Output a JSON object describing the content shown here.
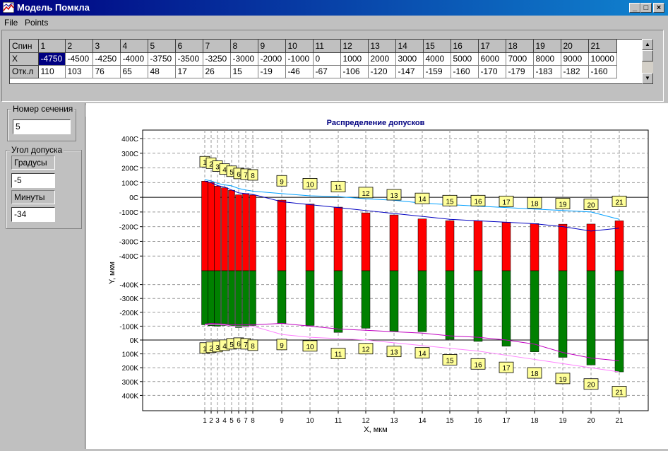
{
  "window": {
    "title": "Модель Помкла"
  },
  "menu": [
    "File",
    "Points"
  ],
  "grid": {
    "rows": [
      {
        "label": "Спин",
        "cells": [
          "1",
          "2",
          "3",
          "4",
          "5",
          "6",
          "7",
          "8",
          "9",
          "10",
          "11",
          "12",
          "13",
          "14",
          "15",
          "16",
          "17",
          "18",
          "19",
          "20",
          "21"
        ]
      },
      {
        "label": "X",
        "cells": [
          "-4750",
          "-4500",
          "-4250",
          "-4000",
          "-3750",
          "-3500",
          "-3250",
          "-3000",
          "-2000",
          "-1000",
          "0",
          "1000",
          "2000",
          "3000",
          "4000",
          "5000",
          "6000",
          "7000",
          "8000",
          "9000",
          "10000"
        ]
      },
      {
        "label": "Отк.л",
        "cells": [
          "110",
          "103",
          "76",
          "65",
          "48",
          "17",
          "26",
          "15",
          "-19",
          "-46",
          "-67",
          "-106",
          "-120",
          "-147",
          "-159",
          "-160",
          "-170",
          "-179",
          "-183",
          "-182",
          "-160"
        ]
      }
    ]
  },
  "section": {
    "label": "Номер сечения",
    "value": "5"
  },
  "angle": {
    "label": "Угол допуска",
    "degrees_label": "Градусы",
    "degrees_value": "-5",
    "minutes_label": "Минуты",
    "minutes_value": "-34"
  },
  "chart_data": {
    "type": "bar",
    "title": "Распределение допусков",
    "xlabel": "X, мкм",
    "ylabel": "Y, мкм",
    "x_ticks": [
      "1",
      "2",
      "3",
      "4",
      "5",
      "6",
      "7",
      "8",
      "9",
      "10",
      "11",
      "12",
      "13",
      "14",
      "15",
      "16",
      "17",
      "18",
      "19",
      "20",
      "21"
    ],
    "upper_ticks": [
      "400C",
      "300C",
      "200C",
      "100C",
      "0C",
      "-100C",
      "-200C",
      "-300C",
      "-400C"
    ],
    "lower_ticks": [
      "-400K",
      "-300K",
      "-200K",
      "-100K",
      "0K",
      "100K",
      "200K",
      "300K",
      "400K"
    ],
    "upper_panel": {
      "range": [
        -500,
        400
      ],
      "bar_top": [
        110,
        103,
        76,
        65,
        48,
        17,
        26,
        15,
        -19,
        -46,
        -67,
        -106,
        -120,
        -147,
        -159,
        -160,
        -170,
        -179,
        -183,
        -182,
        -160
      ],
      "upper_line": [
        120,
        112,
        95,
        85,
        78,
        60,
        50,
        42,
        25,
        10,
        5,
        -10,
        -20,
        -40,
        -50,
        -60,
        -70,
        -80,
        -90,
        -100,
        -150
      ],
      "lower_line": [
        110,
        100,
        80,
        70,
        50,
        30,
        25,
        20,
        -30,
        -50,
        -70,
        -90,
        -110,
        -130,
        -150,
        -160,
        -170,
        -180,
        -200,
        -230,
        -210
      ],
      "labels": [
        "1",
        "2",
        "3",
        "4",
        "5",
        "6",
        "7",
        "8",
        "9",
        "10",
        "11",
        "12",
        "13",
        "14",
        "15",
        "16",
        "17",
        "18",
        "19",
        "20",
        "21"
      ],
      "label_y": [
        240,
        230,
        210,
        190,
        175,
        160,
        155,
        150,
        110,
        90,
        70,
        30,
        15,
        -10,
        -25,
        -25,
        -30,
        -40,
        -45,
        -50,
        -30
      ],
      "colors": {
        "bar": "#ff0000",
        "upper_line": "#00a0ff",
        "lower_line": "#0000c0"
      }
    },
    "lower_panel": {
      "range": [
        -500,
        500
      ],
      "bar_bottom": [
        -110,
        -103,
        -100,
        -105,
        -100,
        -90,
        -95,
        -105,
        -120,
        -105,
        -55,
        -85,
        -60,
        -60,
        -5,
        10,
        45,
        85,
        125,
        180,
        230
      ],
      "upper_line": [
        -115,
        -120,
        -118,
        -115,
        -110,
        -110,
        -112,
        -110,
        -120,
        -100,
        -80,
        -70,
        -60,
        -50,
        -30,
        -20,
        0,
        30,
        90,
        130,
        150
      ],
      "lower_line": [
        -110,
        -110,
        -110,
        -110,
        -100,
        -100,
        -100,
        -100,
        -40,
        -20,
        -10,
        0,
        20,
        40,
        60,
        80,
        110,
        140,
        170,
        200,
        230
      ],
      "labels": [
        "1",
        "2",
        "3",
        "4",
        "5",
        "6",
        "7",
        "8",
        "9",
        "10",
        "11",
        "12",
        "13",
        "14",
        "15",
        "16",
        "17",
        "18",
        "19",
        "20",
        "21"
      ],
      "label_y": [
        60,
        55,
        50,
        40,
        30,
        25,
        30,
        40,
        35,
        45,
        100,
        65,
        85,
        95,
        145,
        175,
        200,
        240,
        280,
        320,
        375
      ],
      "colors": {
        "bar": "#008000",
        "upper_line": "#c000c0",
        "lower_line": "#ff80ff"
      }
    },
    "grid": true
  }
}
